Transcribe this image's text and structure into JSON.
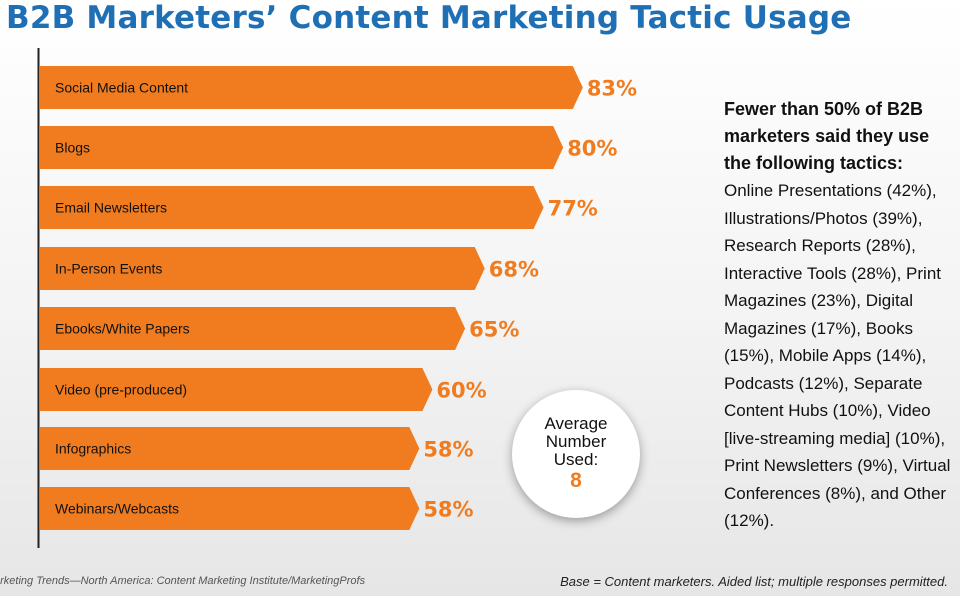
{
  "chart_data": {
    "type": "bar",
    "orientation": "horizontal",
    "title": "B2B Marketers’ Content Marketing Tactic Usage",
    "categories": [
      "Social Media Content",
      "Blogs",
      "Email Newsletters",
      "In-Person Events",
      "Ebooks/White Papers",
      "Video (pre-produced)",
      "Infographics",
      "Webinars/Webcasts"
    ],
    "values": [
      83,
      80,
      77,
      68,
      65,
      60,
      58,
      58
    ],
    "value_labels": [
      "83%",
      "80%",
      "77%",
      "68%",
      "65%",
      "60%",
      "58%",
      "58%"
    ],
    "xlabel": "",
    "ylabel": "",
    "xlim": [
      0,
      100
    ],
    "grid": false,
    "bar_color": "#f07c1f",
    "value_label_color": "#f07c1f"
  },
  "sidebar": {
    "heading": "Fewer than 50% of B2B marketers said they use the following tactics:",
    "body": "Online Presentations (42%), Illustrations/Photos (39%), Research Reports (28%), Interactive Tools (28%), Print Magazines (23%), Digital Magazines (17%), Books (15%), Mobile Apps (14%), Podcasts (12%), Separate Content Hubs (10%), Video [live-streaming media] (10%), Print Newsletters (9%), Virtual Conferences (8%), and Other (12%)."
  },
  "average_badge": {
    "line1": "Average",
    "line2": "Number",
    "line3": "Used:",
    "value": "8"
  },
  "footer": {
    "source": "arketing Trends—North America: Content Marketing Institute/MarketingProfs",
    "base_note": "Base = Content marketers. Aided list; multiple responses permitted."
  },
  "colors": {
    "title": "#1f6fb5",
    "bar": "#f07c1f",
    "axis": "#222222"
  }
}
